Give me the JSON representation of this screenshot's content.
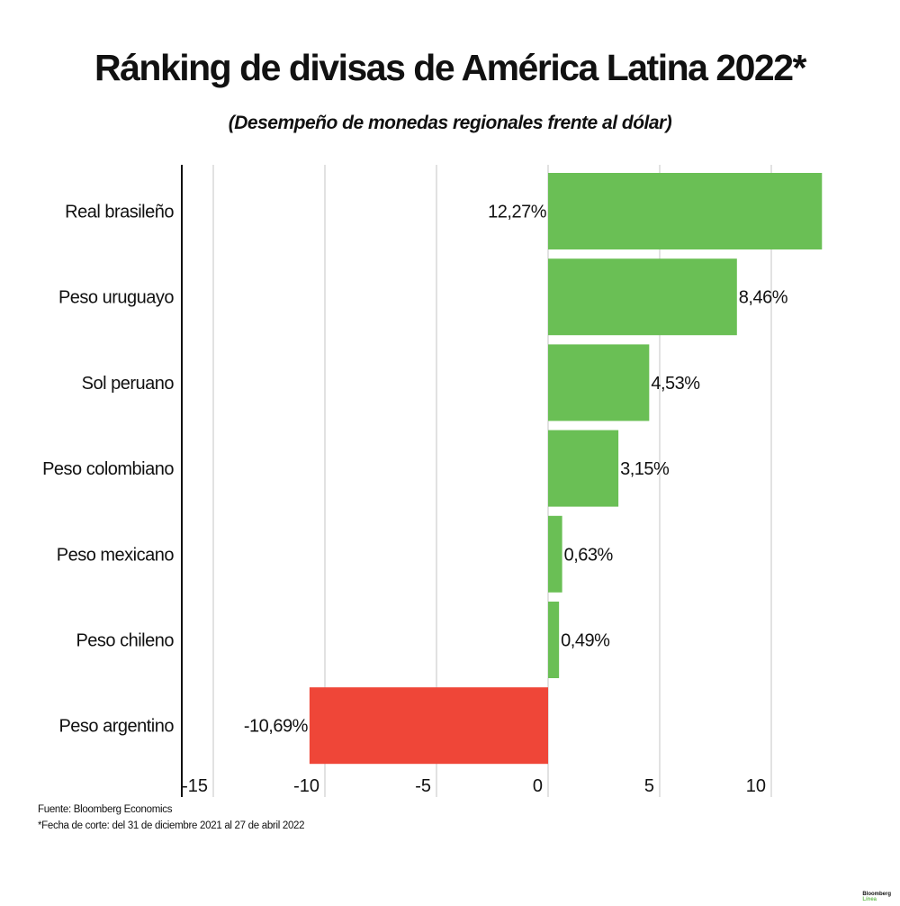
{
  "chart_data": {
    "type": "bar",
    "orientation": "horizontal",
    "title": "Ránking de divisas de América Latina 2022*",
    "subtitle": "(Desempeño de monedas regionales frente al dólar)",
    "categories": [
      "Real brasileño",
      "Peso uruguayo",
      "Sol peruano",
      "Peso colombiano",
      "Peso mexicano",
      "Peso chileno",
      "Peso argentino"
    ],
    "values": [
      12.27,
      8.46,
      4.53,
      3.15,
      0.63,
      0.49,
      -10.69
    ],
    "data_labels": [
      "12,27%",
      "8,46%",
      "4,53%",
      "3,15%",
      "0,63%",
      "0,49%",
      "-10,69%"
    ],
    "xlim": [
      -16.5,
      13.5
    ],
    "xticks": [
      -15,
      -10,
      -5,
      0,
      5,
      10
    ],
    "xtick_labels": [
      "-15",
      "-10",
      "-5",
      "0",
      "5",
      "10"
    ],
    "grid": true,
    "colors": {
      "positive": "#6abf55",
      "negative": "#ef4638",
      "grid": "#d9d9d9",
      "axis": "#111111"
    }
  },
  "footer": {
    "source": "Fuente: Bloomberg Economics",
    "note": "*Fecha de corte: del 31 de diciembre 2021 al 27 de abril 2022"
  },
  "logo": {
    "line1": "Bloomberg",
    "line2": "Línea"
  }
}
